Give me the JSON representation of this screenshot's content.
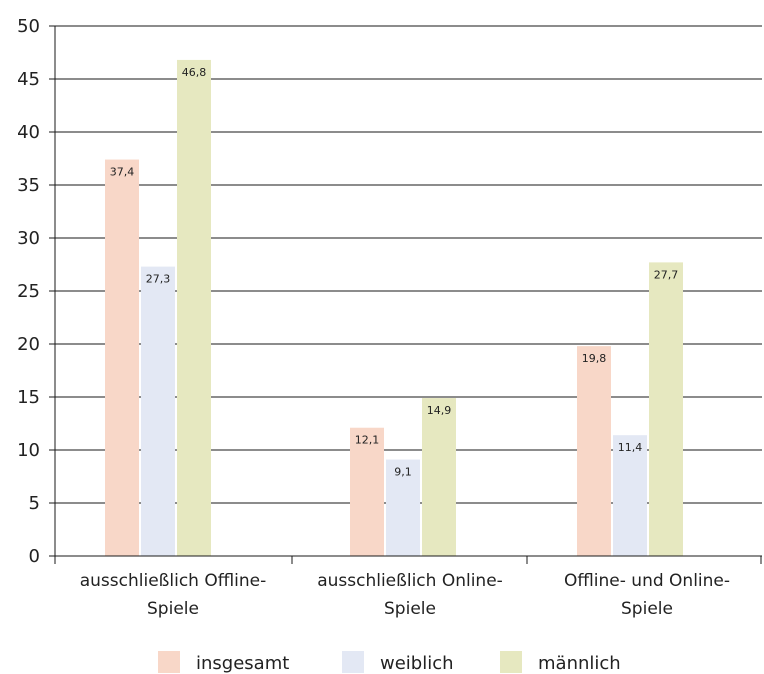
{
  "chart_data": {
    "type": "bar",
    "title": "",
    "xlabel": "",
    "ylabel": "",
    "ylim": [
      0,
      50
    ],
    "yticks": [
      "0",
      "5",
      "10",
      "15",
      "20",
      "25",
      "30",
      "35",
      "40",
      "45",
      "50"
    ],
    "grid": true,
    "legend_position": "bottom",
    "categories": [
      [
        "ausschließlich Offline-",
        "Spiele"
      ],
      [
        "ausschließlich Online-",
        "Spiele"
      ],
      [
        "Offline- und Online-",
        "Spiele"
      ]
    ],
    "series": [
      {
        "name": "insgesamt",
        "color": "#f8d7c8",
        "values": [
          37.4,
          12.1,
          19.8
        ],
        "labels": [
          "37,4",
          "12,1",
          "19,8"
        ]
      },
      {
        "name": "weiblich",
        "color": "#e3e8f4",
        "values": [
          27.3,
          9.1,
          11.4
        ],
        "labels": [
          "27,3",
          "9,1",
          "11,4"
        ]
      },
      {
        "name": "männlich",
        "color": "#e6e8c0",
        "values": [
          46.8,
          14.9,
          27.7
        ],
        "labels": [
          "46,8",
          "14,9",
          "27,7"
        ]
      }
    ]
  }
}
